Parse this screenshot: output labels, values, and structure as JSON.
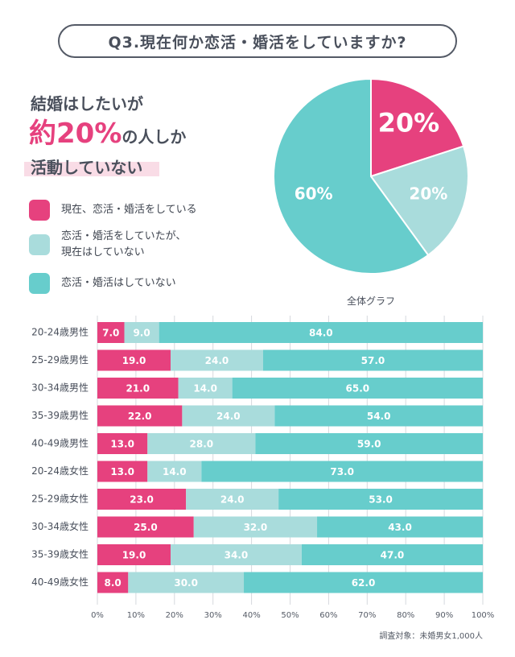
{
  "question": "Q3.現在何か恋活・婚活をしていますか?",
  "headline": {
    "line1": "結婚はしたいが",
    "line2_em": "約20%",
    "line2_rest": "の人しか",
    "line3": "活動していない"
  },
  "colors": {
    "active": "#e6417e",
    "past": "#a9dcdc",
    "never": "#67cdcc",
    "text": "#4a505c"
  },
  "legend": [
    {
      "label": "現在、恋活・婚活をしている",
      "color": "#e6417e"
    },
    {
      "label_lines": [
        "恋活・婚活をしていたが、",
        "現在はしていない"
      ],
      "color": "#a9dcdc"
    },
    {
      "label": "恋活・婚活はしていない",
      "color": "#67cdcc"
    }
  ],
  "chart_data": [
    {
      "type": "pie",
      "caption": "全体グラフ",
      "slices": [
        {
          "label": "20%",
          "value": 20,
          "color": "#e6417e"
        },
        {
          "label": "20%",
          "value": 20,
          "color": "#a9dcdc"
        },
        {
          "label": "60%",
          "value": 60,
          "color": "#67cdcc"
        }
      ]
    },
    {
      "type": "bar",
      "orientation": "horizontal",
      "stacked": true,
      "categories": [
        "20-24歳男性",
        "25-29歳男性",
        "30-34歳男性",
        "35-39歳男性",
        "40-49歳男性",
        "20-24歳女性",
        "25-29歳女性",
        "30-34歳女性",
        "35-39歳女性",
        "40-49歳女性"
      ],
      "series": [
        {
          "values": [
            7.0,
            19.0,
            21.0,
            22.0,
            13.0,
            13.0,
            23.0,
            25.0,
            19.0,
            8.0
          ],
          "color": "#e6417e"
        },
        {
          "values": [
            9.0,
            24.0,
            14.0,
            24.0,
            28.0,
            14.0,
            24.0,
            32.0,
            34.0,
            30.0
          ],
          "color": "#a9dcdc"
        },
        {
          "values": [
            84.0,
            57.0,
            65.0,
            54.0,
            59.0,
            73.0,
            53.0,
            43.0,
            47.0,
            62.0
          ],
          "color": "#67cdcc"
        }
      ],
      "xlim": [
        0,
        100
      ],
      "xticks": [
        "0%",
        "10%",
        "20%",
        "30%",
        "40%",
        "50%",
        "60%",
        "70%",
        "80%",
        "90%",
        "100%"
      ],
      "grid": true
    }
  ],
  "note": "調査対象：未婚男女1,000人"
}
